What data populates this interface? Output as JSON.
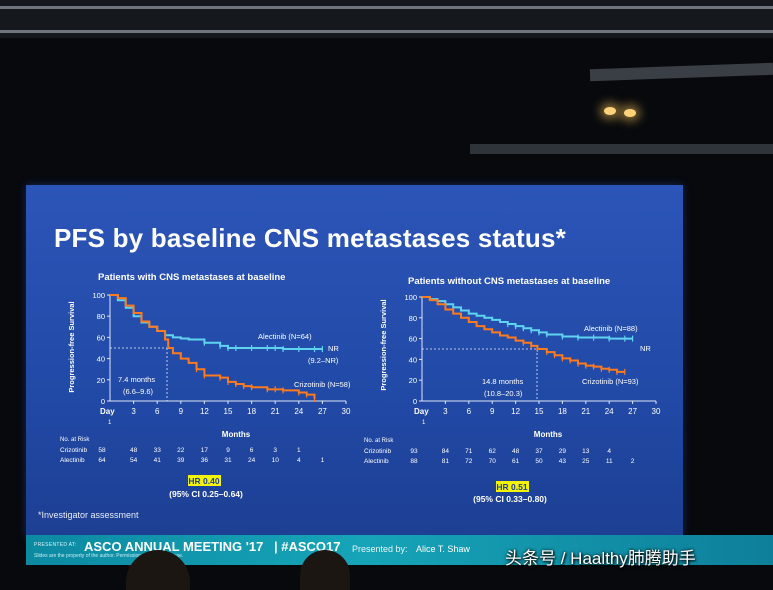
{
  "slide": {
    "title": "PFS by baseline CNS metastases status*",
    "footnote": "*Investigator assessment"
  },
  "left_panel": {
    "title": "Patients with CNS metastases at baseline",
    "y_axis_label": "Progression-free Survival",
    "y_ticks": [
      "100",
      "80",
      "60",
      "40",
      "20",
      "0"
    ],
    "x_ticks": [
      "3",
      "6",
      "9",
      "12",
      "15",
      "18",
      "21",
      "24",
      "27",
      "30"
    ],
    "day_label": "Day",
    "day_one": "1",
    "x_axis_label": "Months",
    "alectinib_label": "Alectinib (N=64)",
    "alectinib_median": "NR",
    "alectinib_ci": "(9.2–NR)",
    "crizotinib_label": "Crizotinib (N=58)",
    "median_text": "7.4 months",
    "median_ci": "(6.6–9.6)",
    "risk_header": "No. at Risk",
    "risk_rows": [
      {
        "name": "Crizotinib",
        "values": [
          "58",
          "48",
          "33",
          "22",
          "17",
          "9",
          "6",
          "3",
          "1",
          ""
        ]
      },
      {
        "name": "Alectinib",
        "values": [
          "64",
          "54",
          "41",
          "39",
          "36",
          "31",
          "24",
          "10",
          "4",
          "1"
        ]
      }
    ],
    "hr": "HR 0.40",
    "ci": "(95% CI 0.25–0.64)"
  },
  "right_panel": {
    "title": "Patients without CNS metastases at baseline",
    "y_axis_label": "Progression-free Survival",
    "y_ticks": [
      "100",
      "80",
      "60",
      "40",
      "20",
      "0"
    ],
    "x_ticks": [
      "3",
      "6",
      "9",
      "12",
      "15",
      "18",
      "21",
      "24",
      "27",
      "30"
    ],
    "day_label": "Day",
    "day_one": "1",
    "x_axis_label": "Months",
    "alectinib_label": "Alectinib (N=88)",
    "alectinib_median": "NR",
    "crizotinib_label": "Crizotinib (N=93)",
    "median_text": "14.8 months",
    "median_ci": "(10.8–20.3)",
    "risk_header": "No. at Risk",
    "risk_rows": [
      {
        "name": "Crizotinib",
        "values": [
          "93",
          "84",
          "71",
          "62",
          "48",
          "37",
          "29",
          "13",
          "4",
          ""
        ]
      },
      {
        "name": "Alectinib",
        "values": [
          "88",
          "81",
          "72",
          "70",
          "61",
          "50",
          "43",
          "25",
          "11",
          "2"
        ]
      }
    ],
    "hr": "HR 0.51",
    "ci": "(95% CI 0.33–0.80)"
  },
  "chart_data": [
    {
      "type": "line",
      "title": "Patients with CNS metastases at baseline",
      "xlabel": "Months",
      "ylabel": "Progression-free Survival",
      "xlim": [
        0,
        30
      ],
      "ylim": [
        0,
        100
      ],
      "series": [
        {
          "name": "Alectinib (N=64)",
          "color": "#5fd3f0",
          "x": [
            0,
            1,
            2,
            3,
            4,
            5,
            6,
            7,
            8,
            9,
            10,
            12,
            14,
            15,
            16,
            18,
            20,
            21,
            22,
            24,
            26,
            27
          ],
          "y": [
            100,
            95,
            88,
            80,
            74,
            70,
            66,
            62,
            60,
            59,
            58,
            55,
            52,
            50,
            50,
            50,
            50,
            50,
            49,
            49,
            49,
            49
          ]
        },
        {
          "name": "Crizotinib (N=58)",
          "color": "#ff7a1a",
          "x": [
            0,
            1,
            2,
            3,
            4,
            5,
            6,
            7,
            7.4,
            8,
            9,
            10,
            11,
            12,
            14,
            15,
            16,
            17,
            18,
            20,
            21,
            22,
            24,
            25,
            26
          ],
          "y": [
            100,
            97,
            90,
            83,
            75,
            70,
            66,
            58,
            50,
            45,
            40,
            36,
            30,
            24,
            22,
            18,
            16,
            14,
            13,
            11,
            11,
            10,
            8,
            6,
            2
          ]
        }
      ]
    },
    {
      "type": "line",
      "title": "Patients without CNS metastases at baseline",
      "xlabel": "Months",
      "ylabel": "Progression-free Survival",
      "xlim": [
        0,
        30
      ],
      "ylim": [
        0,
        100
      ],
      "series": [
        {
          "name": "Alectinib (N=88)",
          "color": "#5fd3f0",
          "x": [
            0,
            1,
            2,
            3,
            4,
            5,
            6,
            7,
            8,
            9,
            10,
            11,
            12,
            13,
            14,
            15,
            16,
            18,
            20,
            22,
            24,
            26,
            27
          ],
          "y": [
            100,
            98,
            96,
            93,
            90,
            87,
            84,
            82,
            80,
            78,
            76,
            74,
            72,
            70,
            68,
            66,
            64,
            62,
            61,
            61,
            60,
            60,
            60
          ]
        },
        {
          "name": "Crizotinib (N=93)",
          "color": "#ff7a1a",
          "x": [
            0,
            1,
            2,
            3,
            4,
            5,
            6,
            7,
            8,
            9,
            10,
            11,
            12,
            13,
            14,
            14.8,
            16,
            17,
            18,
            19,
            20,
            21,
            22,
            23,
            24,
            25,
            26
          ],
          "y": [
            100,
            97,
            93,
            88,
            84,
            80,
            76,
            72,
            69,
            66,
            63,
            61,
            58,
            56,
            53,
            50,
            47,
            44,
            41,
            39,
            36,
            34,
            33,
            31,
            30,
            28,
            28
          ]
        }
      ]
    }
  ],
  "banner": {
    "presented_at": "PRESENTED AT:",
    "meeting": "ASCO ANNUAL MEETING '17",
    "hashtag": "| #ASCO17",
    "presenter_label": "Presented by:",
    "presenter": "Alice T. Shaw",
    "slides_note": "Slides are the property of the author. Permission required for reuse."
  },
  "watermark": "头条号 / Haalthy肺腾助手",
  "colors": {
    "slide_bg": "#2149a6",
    "alectinib": "#5fd3f0",
    "crizotinib": "#ff7a1a",
    "hr_highlight": "#f4f400"
  }
}
